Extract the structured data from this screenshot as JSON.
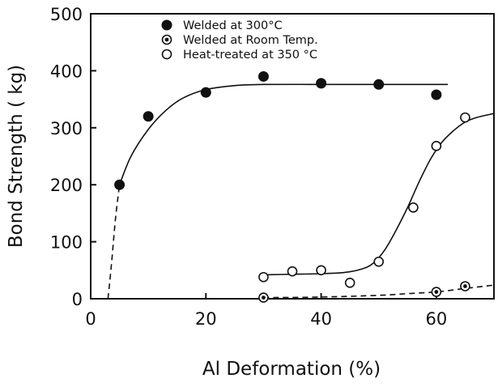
{
  "chart_data": {
    "type": "scatter",
    "title": "",
    "xlabel": "Al Deformation (%)",
    "ylabel": "Bond Strength ( kg)",
    "xlim": [
      0,
      70
    ],
    "ylim": [
      0,
      500
    ],
    "x_ticks": [
      0,
      20,
      40,
      60
    ],
    "y_ticks": [
      0,
      100,
      200,
      300,
      400,
      500
    ],
    "grid": false,
    "legend_position": "top-center",
    "series": [
      {
        "name": "Welded at 300°C",
        "marker": "filled-circle",
        "x": [
          5,
          10,
          20,
          30,
          40,
          50,
          60
        ],
        "y": [
          200,
          320,
          362,
          390,
          378,
          376,
          358
        ],
        "fit_curve": {
          "style": "solid",
          "x": [
            5,
            7,
            10,
            13,
            16,
            20,
            25,
            30,
            40,
            50,
            62
          ],
          "y": [
            200,
            250,
            297,
            330,
            352,
            367,
            374,
            376,
            376,
            376,
            376
          ]
        },
        "extrapolation": {
          "style": "dashed",
          "x": [
            3,
            3.6,
            4.3,
            5
          ],
          "y": [
            0,
            60,
            140,
            200
          ]
        }
      },
      {
        "name": "Welded at Room Temp.",
        "marker": "dotted-circle",
        "x": [
          30,
          60,
          65
        ],
        "y": [
          2,
          12,
          22
        ],
        "fit_curve": {
          "style": "dashed",
          "x": [
            30,
            40,
            50,
            55,
            60,
            65,
            70
          ],
          "y": [
            2,
            3,
            6,
            9,
            12,
            18,
            24
          ]
        }
      },
      {
        "name": "Heat-treated at 350 °C",
        "marker": "open-circle",
        "x": [
          30,
          35,
          40,
          45,
          50,
          56,
          60,
          65
        ],
        "y": [
          38,
          48,
          50,
          28,
          65,
          160,
          268,
          318
        ],
        "fit_curve": {
          "style": "solid",
          "x": [
            30,
            35,
            40,
            44,
            47,
            49,
            51,
            53,
            55,
            57,
            59,
            61,
            63,
            65,
            67,
            70
          ],
          "y": [
            42,
            43,
            44,
            46,
            52,
            62,
            85,
            120,
            160,
            205,
            245,
            275,
            295,
            310,
            318,
            325
          ]
        }
      }
    ]
  }
}
